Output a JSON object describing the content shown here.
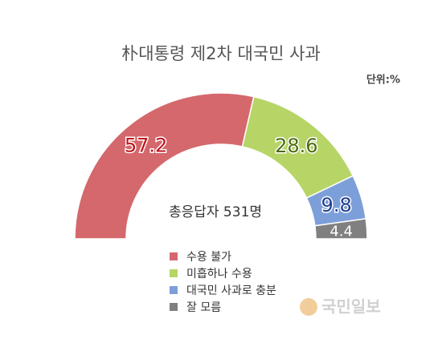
{
  "chart_data": {
    "type": "half-donut",
    "title": "朴대통령 제2차 대국민 사과",
    "unit_note": "단위:%",
    "center_label": "총응답자 531명",
    "categories": [
      "수용 불가",
      "미흡하나 수용",
      "대국민 사과로 충분",
      "잘 모름"
    ],
    "values": [
      57.2,
      28.6,
      9.8,
      4.4
    ],
    "colors": [
      "#d4686d",
      "#b7d566",
      "#7d9fd9",
      "#808080"
    ],
    "label_colors": [
      "#c0141c",
      "#4d6b14",
      "#1f3f8f",
      "#ffffff"
    ],
    "watermark": "국민일보"
  }
}
